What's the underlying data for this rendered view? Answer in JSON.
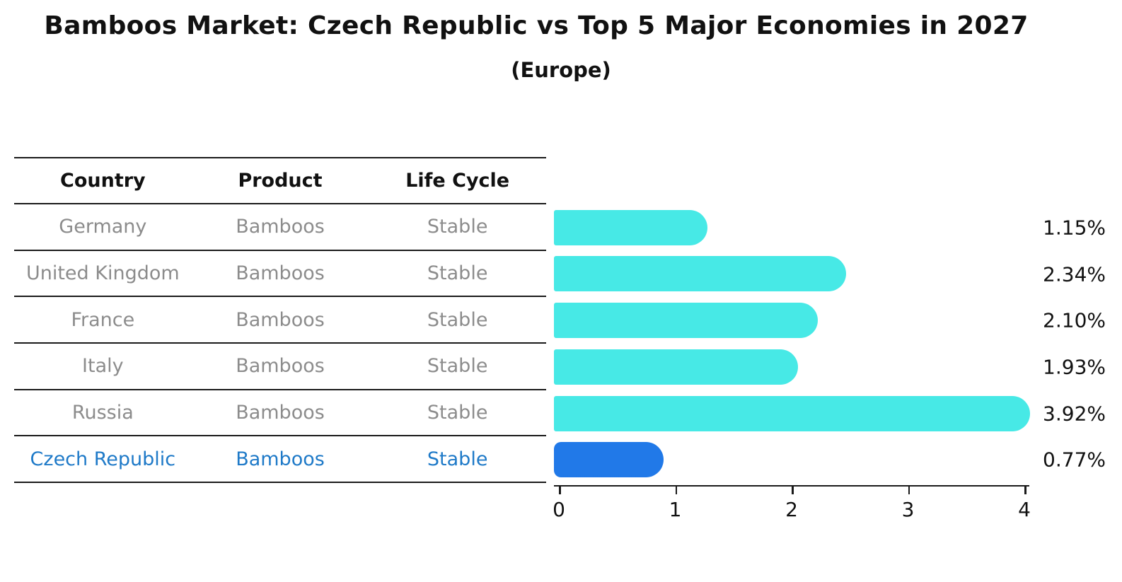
{
  "title": "Bamboos Market: Czech Republic vs Top 5 Major Economies in 2027",
  "subtitle": "(Europe)",
  "table": {
    "headers": {
      "country": "Country",
      "product": "Product",
      "life_cycle": "Life Cycle"
    },
    "rows": [
      {
        "country": "Germany",
        "product": "Bamboos",
        "life_cycle": "Stable"
      },
      {
        "country": "United Kingdom",
        "product": "Bamboos",
        "life_cycle": "Stable"
      },
      {
        "country": "France",
        "product": "Bamboos",
        "life_cycle": "Stable"
      },
      {
        "country": "Italy",
        "product": "Bamboos",
        "life_cycle": "Stable"
      },
      {
        "country": "Russia",
        "product": "Bamboos",
        "life_cycle": "Stable"
      },
      {
        "country": "Czech Republic",
        "product": "Bamboos",
        "life_cycle": "Stable"
      }
    ],
    "highlight_row_index": 5
  },
  "chart_data": {
    "type": "bar",
    "orientation": "horizontal",
    "title": "Bamboos Market: Czech Republic vs Top 5 Major Economies in 2027",
    "subtitle": "(Europe)",
    "categories": [
      "Germany",
      "United Kingdom",
      "France",
      "Italy",
      "Russia",
      "Czech Republic"
    ],
    "values": [
      1.15,
      2.34,
      2.1,
      1.93,
      3.92,
      0.77
    ],
    "value_labels": [
      "1.15%",
      "2.34%",
      "2.10%",
      "1.93%",
      "3.92%",
      "0.77%"
    ],
    "xlabel": "",
    "ylabel": "",
    "xlim": [
      0,
      4
    ],
    "x_ticks": [
      "0",
      "1",
      "2",
      "3",
      "4"
    ],
    "grid": false,
    "legend": "none",
    "highlight_index": 5
  },
  "colors": {
    "bar_color": "#47E9E6",
    "highlight_bar_color": "#2179E8",
    "highlight_text": "#1f7ac8",
    "row_text": "#8c8c8c",
    "axis": "#1a1a1a"
  }
}
